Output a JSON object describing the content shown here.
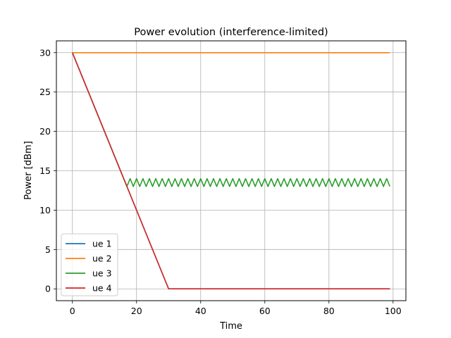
{
  "chart_data": {
    "type": "line",
    "title": "Power evolution (interference-limited)",
    "xlabel": "Time",
    "ylabel": "Power [dBm]",
    "xlim": [
      -5,
      104
    ],
    "ylim": [
      -1.5,
      31.5
    ],
    "xticks": [
      0,
      20,
      40,
      60,
      80,
      100
    ],
    "yticks": [
      0,
      5,
      10,
      15,
      20,
      25,
      30
    ],
    "grid": true,
    "legend_position": "lower-left",
    "series": [
      {
        "name": "ue 1",
        "color": "#1f77b4",
        "x": [
          0,
          30,
          99
        ],
        "y": [
          30,
          0,
          0
        ]
      },
      {
        "name": "ue 2",
        "color": "#ff7f0e",
        "x": [
          0,
          99
        ],
        "y": [
          30,
          30
        ]
      },
      {
        "name": "ue 3",
        "color": "#2ca02c",
        "x": [
          0,
          17,
          18,
          19,
          20,
          21,
          22,
          23,
          24,
          25,
          26,
          27,
          28,
          29,
          30,
          31,
          32,
          33,
          34,
          35,
          36,
          37,
          38,
          39,
          40,
          41,
          42,
          43,
          44,
          45,
          46,
          47,
          48,
          49,
          50,
          51,
          52,
          53,
          54,
          55,
          56,
          57,
          58,
          59,
          60,
          61,
          62,
          63,
          64,
          65,
          66,
          67,
          68,
          69,
          70,
          71,
          72,
          73,
          74,
          75,
          76,
          77,
          78,
          79,
          80,
          81,
          82,
          83,
          84,
          85,
          86,
          87,
          88,
          89,
          90,
          91,
          92,
          93,
          94,
          95,
          96,
          97,
          98,
          99
        ],
        "y": [
          30,
          13,
          14,
          13,
          14,
          13,
          14,
          13,
          14,
          13,
          14,
          13,
          14,
          13,
          14,
          13,
          14,
          13,
          14,
          13,
          14,
          13,
          14,
          13,
          14,
          13,
          14,
          13,
          14,
          13,
          14,
          13,
          14,
          13,
          14,
          13,
          14,
          13,
          14,
          13,
          14,
          13,
          14,
          13,
          14,
          13,
          14,
          13,
          14,
          13,
          14,
          13,
          14,
          13,
          14,
          13,
          14,
          13,
          14,
          13,
          14,
          13,
          14,
          13,
          14,
          13,
          14,
          13,
          14,
          13,
          14,
          13,
          14,
          13,
          14,
          13,
          14,
          13,
          14,
          13,
          14,
          13,
          14,
          13
        ]
      },
      {
        "name": "ue 4",
        "color": "#d62728",
        "x": [
          0,
          30,
          99
        ],
        "y": [
          30,
          0,
          0
        ]
      }
    ]
  }
}
